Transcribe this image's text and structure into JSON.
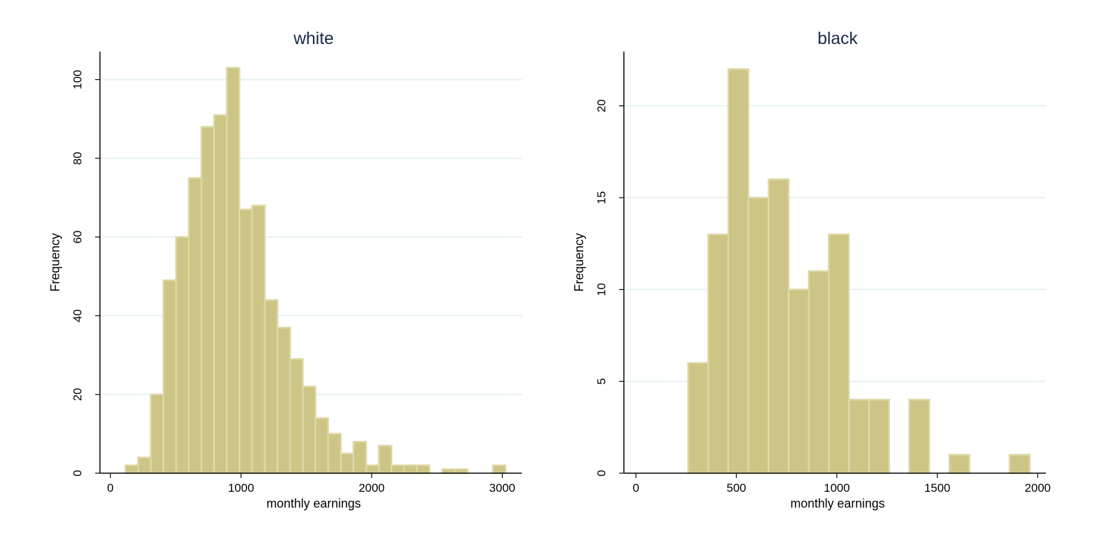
{
  "colors": {
    "bar_fill": "#cdc585",
    "bar_edge": "#ddd8a6",
    "grid": "#e6f0f0",
    "title": "#1a2a4a"
  },
  "chart_data": [
    {
      "type": "bar",
      "title": "white",
      "xlabel": "monthly earnings",
      "ylabel": "Frequency",
      "bin_width": 97,
      "xlim": [
        -80,
        3150
      ],
      "ylim": [
        0,
        105
      ],
      "xticks": [
        0,
        1000,
        2000,
        3000
      ],
      "yticks": [
        0,
        20,
        40,
        60,
        80,
        100
      ],
      "grid": true,
      "bins": [
        {
          "start": 115,
          "end": 212,
          "count": 2
        },
        {
          "start": 212,
          "end": 309,
          "count": 4
        },
        {
          "start": 309,
          "end": 406,
          "count": 20
        },
        {
          "start": 406,
          "end": 503,
          "count": 49
        },
        {
          "start": 503,
          "end": 600,
          "count": 60
        },
        {
          "start": 600,
          "end": 697,
          "count": 75
        },
        {
          "start": 697,
          "end": 794,
          "count": 88
        },
        {
          "start": 794,
          "end": 891,
          "count": 91
        },
        {
          "start": 891,
          "end": 988,
          "count": 103
        },
        {
          "start": 988,
          "end": 1085,
          "count": 67
        },
        {
          "start": 1085,
          "end": 1182,
          "count": 68
        },
        {
          "start": 1182,
          "end": 1279,
          "count": 44
        },
        {
          "start": 1279,
          "end": 1376,
          "count": 37
        },
        {
          "start": 1376,
          "end": 1473,
          "count": 29
        },
        {
          "start": 1473,
          "end": 1570,
          "count": 22
        },
        {
          "start": 1570,
          "end": 1667,
          "count": 14
        },
        {
          "start": 1667,
          "end": 1764,
          "count": 10
        },
        {
          "start": 1764,
          "end": 1861,
          "count": 5
        },
        {
          "start": 1861,
          "end": 1958,
          "count": 8
        },
        {
          "start": 1958,
          "end": 2055,
          "count": 2
        },
        {
          "start": 2055,
          "end": 2152,
          "count": 7
        },
        {
          "start": 2152,
          "end": 2249,
          "count": 2
        },
        {
          "start": 2249,
          "end": 2346,
          "count": 2
        },
        {
          "start": 2346,
          "end": 2443,
          "count": 2
        },
        {
          "start": 2443,
          "end": 2540,
          "count": 0
        },
        {
          "start": 2540,
          "end": 2637,
          "count": 1
        },
        {
          "start": 2637,
          "end": 2734,
          "count": 1
        },
        {
          "start": 2734,
          "end": 2831,
          "count": 0
        },
        {
          "start": 2831,
          "end": 2928,
          "count": 0
        },
        {
          "start": 2928,
          "end": 3025,
          "count": 2
        }
      ]
    },
    {
      "type": "bar",
      "title": "black",
      "xlabel": "monthly earnings",
      "ylabel": "Frequency",
      "bin_width": 100,
      "xlim": [
        -60,
        2040
      ],
      "ylim": [
        0,
        22.5
      ],
      "xticks": [
        0,
        500,
        1000,
        1500,
        2000
      ],
      "yticks": [
        0,
        5,
        10,
        15,
        20
      ],
      "grid": true,
      "bins": [
        {
          "start": 260,
          "end": 360,
          "count": 6
        },
        {
          "start": 360,
          "end": 460,
          "count": 13
        },
        {
          "start": 460,
          "end": 560,
          "count": 22
        },
        {
          "start": 560,
          "end": 660,
          "count": 15
        },
        {
          "start": 660,
          "end": 760,
          "count": 16
        },
        {
          "start": 760,
          "end": 860,
          "count": 10
        },
        {
          "start": 860,
          "end": 960,
          "count": 11
        },
        {
          "start": 960,
          "end": 1060,
          "count": 13
        },
        {
          "start": 1060,
          "end": 1160,
          "count": 4
        },
        {
          "start": 1160,
          "end": 1260,
          "count": 4
        },
        {
          "start": 1260,
          "end": 1360,
          "count": 0
        },
        {
          "start": 1360,
          "end": 1460,
          "count": 4
        },
        {
          "start": 1460,
          "end": 1560,
          "count": 0
        },
        {
          "start": 1560,
          "end": 1660,
          "count": 1
        },
        {
          "start": 1660,
          "end": 1760,
          "count": 0
        },
        {
          "start": 1760,
          "end": 1860,
          "count": 0
        },
        {
          "start": 1860,
          "end": 1960,
          "count": 1
        }
      ]
    }
  ]
}
